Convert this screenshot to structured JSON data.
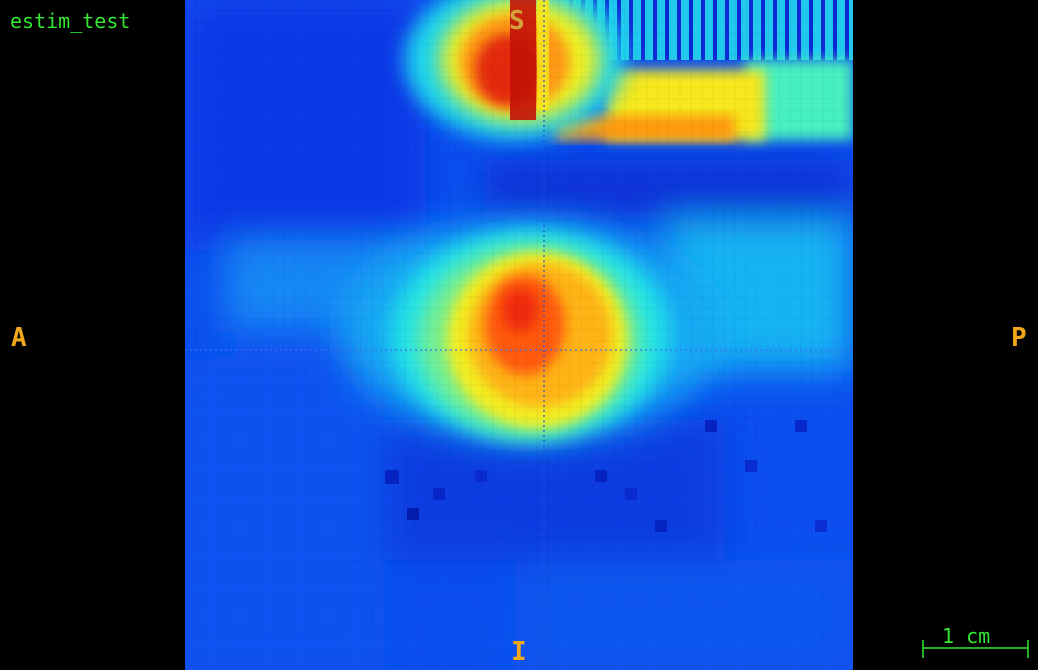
{
  "viewer": {
    "dataset_name": "estim_test",
    "orientation": {
      "superior": "S",
      "inferior": "I",
      "anterior": "A",
      "posterior": "P"
    },
    "scale_bar_label": "1 cm",
    "colormap": "jet",
    "colors": {
      "label_text": "#33e833",
      "orientation_text": "#f2a81a",
      "crosshair": "#2a6be8",
      "background": "#000000"
    }
  }
}
